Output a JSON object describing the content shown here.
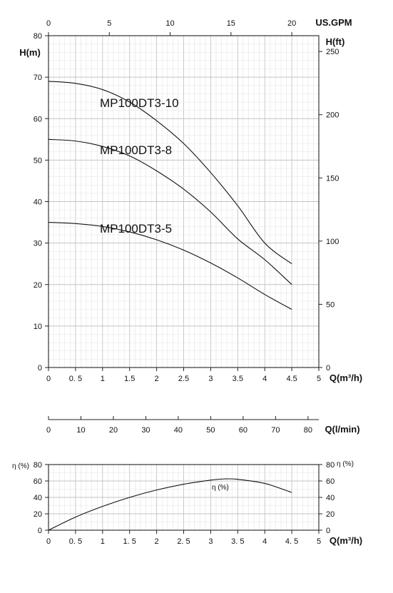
{
  "chart_data": [
    {
      "type": "line",
      "name": "head_curves",
      "top_axis": {
        "label": "US.GPM",
        "ticks": [
          "0",
          "5",
          "10",
          "15",
          "20"
        ],
        "range": [
          0,
          20
        ]
      },
      "left_axis": {
        "label": "H(m)",
        "ticks": [
          "0",
          "10",
          "20",
          "30",
          "40",
          "50",
          "60",
          "70",
          "80"
        ],
        "range": [
          0,
          80
        ]
      },
      "right_axis": {
        "label": "H(ft)",
        "ticks": [
          "0",
          "50",
          "100",
          "150",
          "200",
          "250"
        ],
        "range": [
          0,
          262.5
        ]
      },
      "bottom_axis": {
        "label": "Q(m³/h)",
        "ticks": [
          "0",
          "0. 5",
          "1",
          "1.5",
          "2",
          "2.5",
          "3",
          "3.5",
          "4",
          "4.5",
          "5"
        ],
        "range": [
          0,
          5
        ]
      },
      "grid": true,
      "series": [
        {
          "name": "MP100DT3-10",
          "x": [
            0,
            0.5,
            1,
            1.5,
            2,
            2.5,
            3,
            3.5,
            4,
            4.5
          ],
          "y": [
            69,
            68.5,
            67,
            64,
            59.5,
            54,
            47,
            39,
            30,
            25
          ]
        },
        {
          "name": "MP100DT3-8",
          "x": [
            0,
            0.5,
            1,
            1.5,
            2,
            2.5,
            3,
            3.5,
            4,
            4.5
          ],
          "y": [
            55,
            54.6,
            53.3,
            51,
            47.4,
            43,
            37.5,
            31,
            26,
            20
          ]
        },
        {
          "name": "MP100DT3-5",
          "x": [
            0,
            0.5,
            1,
            1.5,
            2,
            2.5,
            3,
            3.5,
            4,
            4.5
          ],
          "y": [
            35,
            34.7,
            34,
            32.7,
            30.8,
            28.3,
            25.2,
            21.6,
            17.6,
            14
          ]
        }
      ]
    },
    {
      "type": "axis",
      "name": "flow_lmin_scale",
      "axis": {
        "label": "Q(l/min)",
        "ticks": [
          "0",
          "10",
          "20",
          "30",
          "40",
          "50",
          "60",
          "70",
          "80"
        ],
        "range": [
          0,
          83.33
        ]
      }
    },
    {
      "type": "line",
      "name": "efficiency_curve",
      "left_axis": {
        "label": "η (%)",
        "ticks": [
          "0",
          "20",
          "40",
          "60",
          "80"
        ],
        "range": [
          0,
          80
        ]
      },
      "right_axis": {
        "label": "η (%)",
        "ticks": [
          "0",
          "20",
          "40",
          "60",
          "80"
        ],
        "range": [
          0,
          80
        ]
      },
      "bottom_axis": {
        "label": "Q(m³/h)",
        "ticks": [
          "0",
          "0. 5",
          "1",
          "1. 5",
          "2",
          "2. 5",
          "3",
          "3. 5",
          "4",
          "4. 5",
          "5"
        ],
        "range": [
          0,
          5
        ]
      },
      "grid": true,
      "series": [
        {
          "name": "η (%)",
          "x": [
            0,
            0.5,
            1,
            1.5,
            2,
            2.5,
            3,
            3.25,
            3.5,
            4,
            4.5
          ],
          "y": [
            0,
            16,
            29,
            40,
            49,
            56,
            61,
            62.5,
            62,
            57,
            46
          ]
        }
      ]
    }
  ]
}
